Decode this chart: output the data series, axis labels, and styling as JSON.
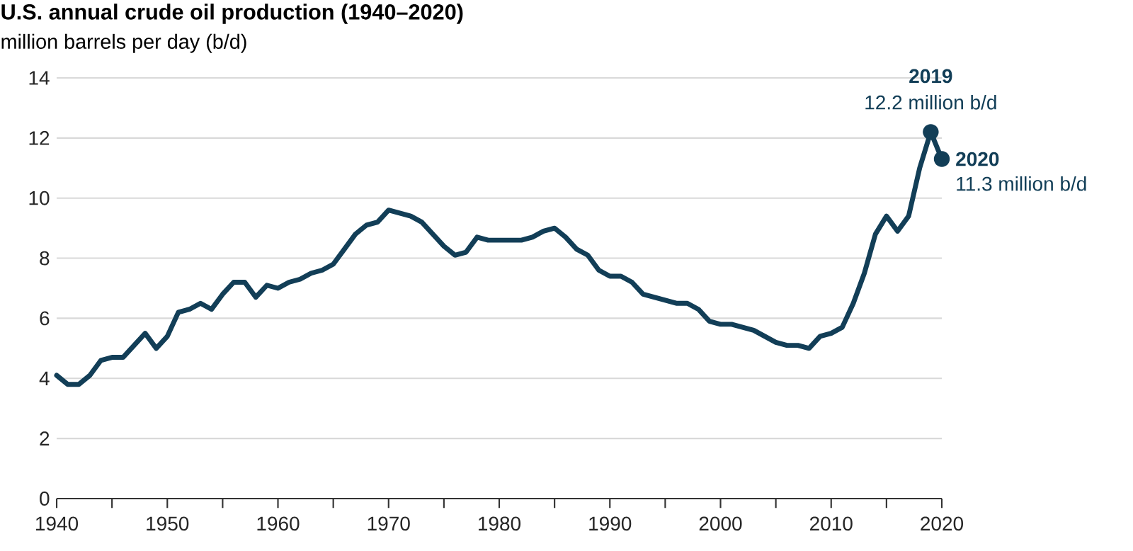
{
  "chart_data": {
    "type": "line",
    "title": "U.S. annual crude oil production (1940–2020)",
    "subtitle": "million barrels per day (b/d)",
    "x": [
      1940,
      1941,
      1942,
      1943,
      1944,
      1945,
      1946,
      1947,
      1948,
      1949,
      1950,
      1951,
      1952,
      1953,
      1954,
      1955,
      1956,
      1957,
      1958,
      1959,
      1960,
      1961,
      1962,
      1963,
      1964,
      1965,
      1966,
      1967,
      1968,
      1969,
      1970,
      1971,
      1972,
      1973,
      1974,
      1975,
      1976,
      1977,
      1978,
      1979,
      1980,
      1981,
      1982,
      1983,
      1984,
      1985,
      1986,
      1987,
      1988,
      1989,
      1990,
      1991,
      1992,
      1993,
      1994,
      1995,
      1996,
      1997,
      1998,
      1999,
      2000,
      2001,
      2002,
      2003,
      2004,
      2005,
      2006,
      2007,
      2008,
      2009,
      2010,
      2011,
      2012,
      2013,
      2014,
      2015,
      2016,
      2017,
      2018,
      2019,
      2020
    ],
    "series": [
      {
        "color": "#123e57",
        "values": [
          4.1,
          3.8,
          3.8,
          4.1,
          4.6,
          4.7,
          4.7,
          5.1,
          5.5,
          5.0,
          5.4,
          6.2,
          6.3,
          6.5,
          6.3,
          6.8,
          7.2,
          7.2,
          6.7,
          7.1,
          7.0,
          7.2,
          7.3,
          7.5,
          7.6,
          7.8,
          8.3,
          8.8,
          9.1,
          9.2,
          9.6,
          9.5,
          9.4,
          9.2,
          8.8,
          8.4,
          8.1,
          8.2,
          8.7,
          8.6,
          8.6,
          8.6,
          8.6,
          8.7,
          8.9,
          9.0,
          8.7,
          8.3,
          8.1,
          7.6,
          7.4,
          7.4,
          7.2,
          6.8,
          6.7,
          6.6,
          6.5,
          6.5,
          6.3,
          5.9,
          5.8,
          5.8,
          5.7,
          5.6,
          5.4,
          5.2,
          5.1,
          5.1,
          5.0,
          5.4,
          5.5,
          5.7,
          6.5,
          7.5,
          8.8,
          9.4,
          8.9,
          9.4,
          11.0,
          12.2,
          11.3
        ]
      }
    ],
    "xlim": [
      1940,
      2020
    ],
    "xticks": [
      1940,
      {
        "value": 1945,
        "label": null
      },
      1950,
      {
        "value": 1955,
        "label": null
      },
      1960,
      {
        "value": 1965,
        "label": null
      },
      1970,
      {
        "value": 1975,
        "label": null
      },
      1980,
      {
        "value": 1985,
        "label": null
      },
      1990,
      {
        "value": 1995,
        "label": null
      },
      2000,
      {
        "value": 2005,
        "label": null
      },
      2010,
      {
        "value": 2015,
        "label": null
      },
      2020
    ],
    "ylim": [
      0,
      14
    ],
    "yticks": [
      0,
      2,
      4,
      6,
      8,
      10,
      12,
      14
    ],
    "grid": "y",
    "marker": "none",
    "line_style": "solid",
    "annotations": [
      "2019",
      {
        "text": "12.2 million b/d",
        "x": 2019,
        "y": 12.2
      },
      "2020",
      {
        "text": "11.3 million b/d",
        "x": 2020,
        "y": 11.3
      }
    ]
  }
}
